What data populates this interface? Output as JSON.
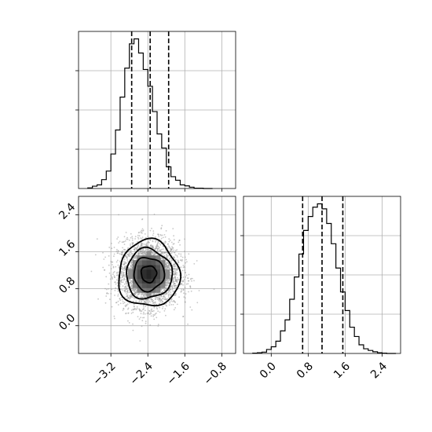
{
  "chart_data": {
    "type": "corner",
    "x_param": {
      "xlim": [
        -3.9,
        -0.5
      ],
      "ticks": [
        -3.2,
        -2.4,
        -1.6,
        -0.8
      ],
      "tick_labels": [
        "−3.2",
        "−2.4",
        "−1.6",
        "−0.8"
      ],
      "quantiles": [
        -2.75,
        -2.35,
        -1.95
      ]
    },
    "y_param": {
      "xlim": [
        -0.6,
        2.8
      ],
      "ticks": [
        0.0,
        0.8,
        1.6,
        2.4
      ],
      "tick_labels": [
        "0.0",
        "0.8",
        "1.6",
        "2.4"
      ],
      "quantiles": [
        0.68,
        1.1,
        1.55
      ]
    },
    "hist_x": {
      "bin_edges": [
        -3.7,
        -3.6,
        -3.5,
        -3.4,
        -3.3,
        -3.2,
        -3.1,
        -3.0,
        -2.9,
        -2.8,
        -2.7,
        -2.6,
        -2.5,
        -2.4,
        -2.3,
        -2.2,
        -2.1,
        -2.0,
        -1.9,
        -1.8,
        -1.7,
        -1.6,
        -1.5,
        -1.4,
        -1.3,
        -1.2,
        -1.1,
        -1.0
      ],
      "counts": [
        2,
        7,
        11,
        27,
        53,
        105,
        178,
        278,
        366,
        440,
        455,
        412,
        362,
        311,
        234,
        166,
        123,
        66,
        36,
        25,
        11,
        8,
        4,
        1,
        1,
        0,
        0
      ]
    },
    "hist_y": {
      "bin_edges": [
        -0.4,
        -0.3,
        -0.2,
        -0.1,
        0.0,
        0.1,
        0.2,
        0.3,
        0.4,
        0.5,
        0.6,
        0.7,
        0.8,
        0.9,
        1.0,
        1.1,
        1.2,
        1.3,
        1.4,
        1.5,
        1.6,
        1.7,
        1.8,
        1.9,
        2.0,
        2.1,
        2.2,
        2.3,
        2.4,
        2.5,
        2.6,
        2.7
      ],
      "counts": [
        1,
        2,
        4,
        12,
        20,
        37,
        68,
        101,
        163,
        230,
        299,
        370,
        412,
        440,
        450,
        435,
        391,
        330,
        257,
        185,
        129,
        79,
        51,
        26,
        14,
        9,
        5,
        2,
        1,
        0,
        0
      ]
    },
    "scatter_center": [
      -2.38,
      1.12
    ],
    "scatter_std": [
      0.33,
      0.36
    ],
    "contour_levels": [
      "0.5σ",
      "1σ",
      "1.5σ",
      "2σ"
    ],
    "grid": true
  }
}
